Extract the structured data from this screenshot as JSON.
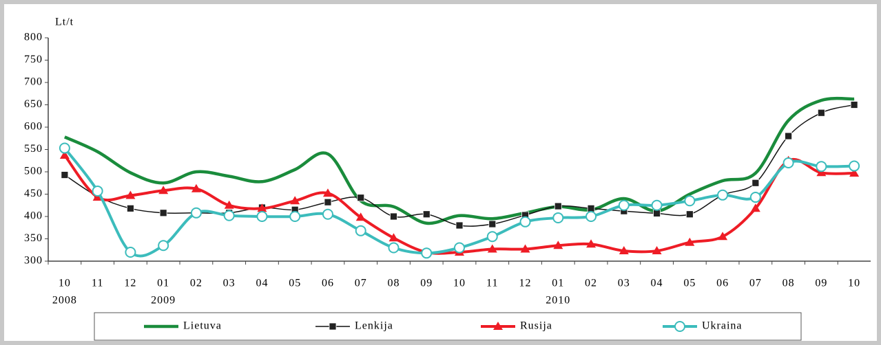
{
  "chart_data": {
    "type": "line",
    "y_label": "Lt/t",
    "categories": [
      "10",
      "11",
      "12",
      "01",
      "02",
      "03",
      "04",
      "05",
      "06",
      "07",
      "08",
      "09",
      "10",
      "11",
      "12",
      "01",
      "02",
      "03",
      "04",
      "05",
      "06",
      "07",
      "08",
      "09",
      "10"
    ],
    "years": [
      "2008",
      null,
      null,
      "2009",
      null,
      null,
      null,
      null,
      null,
      null,
      null,
      null,
      null,
      null,
      null,
      "2010",
      null,
      null,
      null,
      null,
      null,
      null,
      null,
      null,
      null
    ],
    "ylim": [
      300,
      800
    ],
    "yticks": [
      300,
      350,
      400,
      450,
      500,
      550,
      600,
      650,
      700,
      750,
      800
    ],
    "grid": false,
    "legend": "bottom",
    "series": [
      {
        "name": "Lietuva",
        "color": "#1a8c3c",
        "marker": "none",
        "values": [
          578,
          545,
          498,
          475,
          500,
          490,
          478,
          505,
          540,
          435,
          422,
          385,
          402,
          395,
          408,
          422,
          415,
          440,
          412,
          450,
          480,
          497,
          615,
          660,
          663
        ]
      },
      {
        "name": "Lenkija",
        "color": "#111111",
        "marker": "square",
        "values": [
          493,
          445,
          418,
          408,
          408,
          408,
          420,
          415,
          432,
          442,
          400,
          405,
          380,
          383,
          403,
          423,
          418,
          412,
          407,
          405,
          448,
          475,
          580,
          632,
          650
        ]
      },
      {
        "name": "Rusija",
        "color": "#ee1c25",
        "marker": "triangle",
        "values": [
          537,
          443,
          447,
          458,
          462,
          425,
          418,
          435,
          452,
          398,
          352,
          320,
          320,
          327,
          327,
          335,
          338,
          323,
          323,
          342,
          355,
          418,
          525,
          498,
          497
        ]
      },
      {
        "name": "Ukraina",
        "color": "#3cbcbc",
        "marker": "circle",
        "values": [
          553,
          457,
          320,
          335,
          408,
          402,
          400,
          400,
          405,
          368,
          330,
          318,
          330,
          355,
          388,
          397,
          400,
          425,
          425,
          435,
          448,
          443,
          520,
          512,
          513
        ]
      }
    ]
  }
}
